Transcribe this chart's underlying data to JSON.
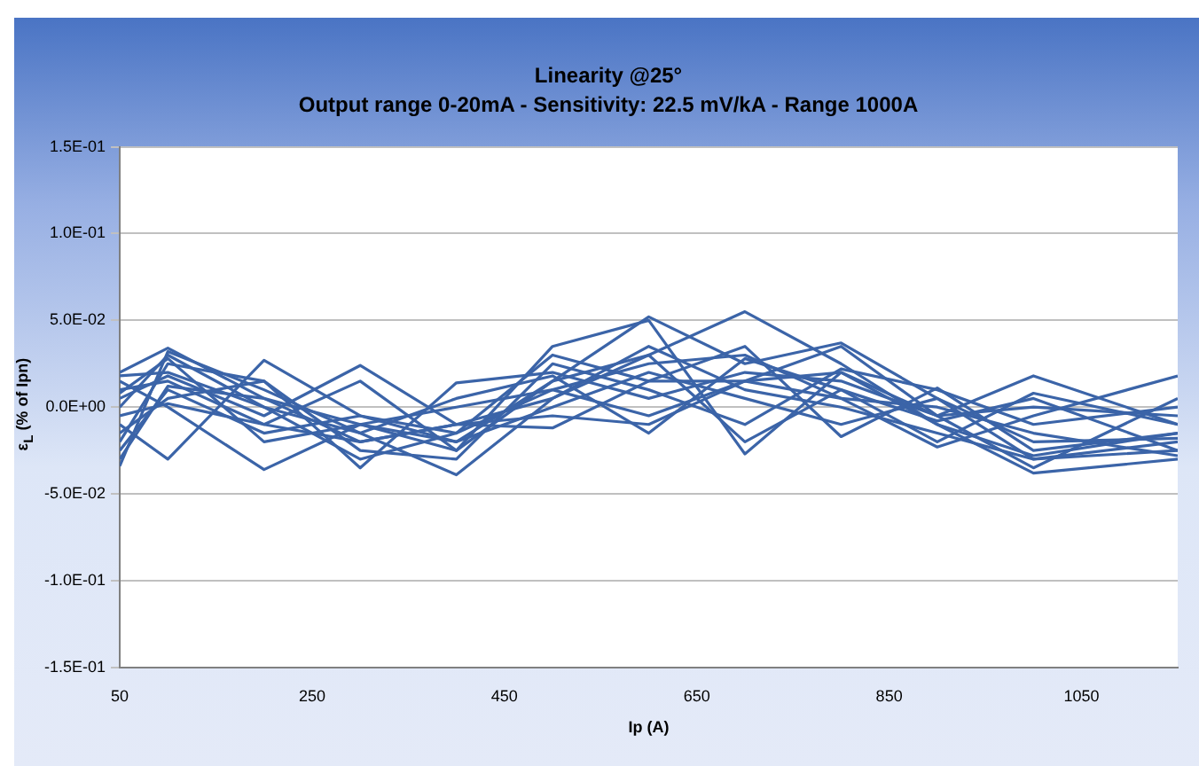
{
  "chart_data": {
    "type": "line",
    "title": "Linearity @25°",
    "subtitle": "Output range 0-20mA - Sensitivity: 22.5 mV/kA - Range 1000A",
    "xlabel": "Ip (A)",
    "ylabel": "ε$_{L}$ (% of Ipn)",
    "x": [
      50,
      100,
      200,
      300,
      400,
      500,
      600,
      700,
      800,
      900,
      1000,
      1150
    ],
    "xlim": [
      50,
      1150
    ],
    "xticks": [
      50,
      250,
      450,
      650,
      850,
      1050
    ],
    "ylim": [
      -0.15,
      0.15
    ],
    "yticks": [
      {
        "value": -0.15,
        "label": "-1.5E-01"
      },
      {
        "value": -0.1,
        "label": "-1.0E-01"
      },
      {
        "value": -0.05,
        "label": "-5.0E-02"
      },
      {
        "value": 0,
        "label": "0.0E+00"
      },
      {
        "value": 0.05,
        "label": "5.0E-02"
      },
      {
        "value": 0.1,
        "label": "1.0E-01"
      },
      {
        "value": 0.15,
        "label": "1.5E-01"
      }
    ],
    "grid": "y",
    "legend": false,
    "marker": "none",
    "line_style": "solid",
    "series": [
      {
        "color": "#3b64a8",
        "values": [
          0.02,
          0.034,
          0.005,
          -0.01,
          -0.02,
          0.015,
          0.052,
          0.025,
          0.037,
          0.005,
          -0.03,
          -0.025
        ]
      },
      {
        "color": "#3b64a8",
        "values": [
          -0.034,
          0.032,
          0.01,
          -0.015,
          -0.039,
          0.005,
          0.03,
          0.055,
          0.025,
          -0.01,
          -0.038,
          -0.03
        ]
      },
      {
        "color": "#3b64a8",
        "values": [
          0.015,
          0.0,
          -0.036,
          -0.01,
          -0.025,
          0.035,
          0.05,
          -0.027,
          0.02,
          -0.005,
          0.018,
          -0.01
        ]
      },
      {
        "color": "#3b64a8",
        "values": [
          -0.01,
          -0.03,
          0.027,
          -0.005,
          -0.015,
          0.01,
          -0.005,
          0.015,
          0.005,
          -0.023,
          -0.005,
          0.018
        ]
      },
      {
        "color": "#3b64a8",
        "values": [
          0.005,
          0.018,
          -0.005,
          0.024,
          -0.01,
          -0.012,
          0.015,
          0.035,
          -0.017,
          0.011,
          -0.025,
          -0.015
        ]
      },
      {
        "color": "#3b64a8",
        "values": [
          -0.02,
          0.025,
          0.015,
          -0.035,
          0.014,
          0.02,
          0.005,
          0.02,
          0.015,
          -0.005,
          0.0,
          -0.005
        ]
      },
      {
        "color": "#3b64a8",
        "values": [
          0.01,
          0.015,
          -0.01,
          -0.02,
          -0.01,
          0.005,
          0.035,
          0.01,
          0.0,
          -0.015,
          -0.03,
          -0.02
        ]
      },
      {
        "color": "#3b64a8",
        "values": [
          -0.015,
          0.005,
          0.015,
          -0.025,
          -0.03,
          0.025,
          0.01,
          -0.01,
          0.022,
          0.01,
          -0.01,
          0.0
        ]
      },
      {
        "color": "#3b64a8",
        "values": [
          0.0,
          0.03,
          0.0,
          -0.015,
          0.005,
          0.018,
          -0.015,
          0.028,
          0.01,
          -0.008,
          0.005,
          -0.025
        ]
      },
      {
        "color": "#3b64a8",
        "values": [
          -0.025,
          0.01,
          -0.015,
          -0.005,
          -0.02,
          0.0,
          0.02,
          0.005,
          -0.01,
          0.005,
          -0.02,
          -0.018
        ]
      },
      {
        "color": "#3b64a8",
        "values": [
          0.018,
          0.02,
          0.0,
          -0.03,
          -0.015,
          0.03,
          0.015,
          0.015,
          0.035,
          -0.005,
          -0.035,
          0.005
        ]
      },
      {
        "color": "#3b64a8",
        "values": [
          -0.005,
          0.002,
          -0.01,
          0.015,
          -0.025,
          0.015,
          0.03,
          -0.02,
          0.01,
          -0.02,
          0.008,
          -0.01
        ]
      },
      {
        "color": "#3b64a8",
        "values": [
          0.008,
          0.028,
          -0.02,
          -0.01,
          0.0,
          0.01,
          0.025,
          0.03,
          0.005,
          0.0,
          -0.015,
          -0.028
        ]
      },
      {
        "color": "#3b64a8",
        "values": [
          -0.03,
          0.012,
          0.005,
          -0.02,
          -0.01,
          -0.005,
          -0.01,
          0.015,
          0.02,
          -0.01,
          -0.028,
          -0.015
        ]
      }
    ]
  }
}
